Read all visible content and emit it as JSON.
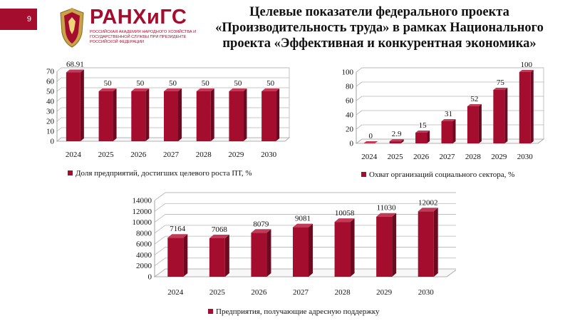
{
  "slide": {
    "page_number": "9",
    "logo_text": "РАНХиГС",
    "logo_subtitle": "Российская академия народного хозяйства и государственной службы при Президенте Российской Федерации",
    "title": "Целевые показатели  федерального проекта «Производительность труда» в рамках Национального проекта «Эффективная и конкурентная экономика»",
    "bar_color": "#a50d2f"
  },
  "chart_data": [
    {
      "type": "bar",
      "categories": [
        "2024",
        "2025",
        "2026",
        "2027",
        "2028",
        "2029",
        "2030"
      ],
      "series": [
        {
          "name": "Доля предприятий, достигших целевого роста ПТ, %",
          "values": [
            68.91,
            50,
            50,
            50,
            50,
            50,
            50
          ]
        }
      ],
      "value_labels": [
        "68.91",
        "50",
        "50",
        "50",
        "50",
        "50",
        "50"
      ],
      "ylim": [
        0,
        70
      ],
      "yticks": [
        "0",
        "10",
        "20",
        "30",
        "40",
        "50",
        "60",
        "70"
      ],
      "grid": true,
      "legend": "bottom"
    },
    {
      "type": "bar",
      "categories": [
        "2024",
        "2025",
        "2026",
        "2027",
        "2028",
        "2029",
        "2030"
      ],
      "series": [
        {
          "name": "Охват организаций социального сектора, %",
          "values": [
            0,
            2.9,
            15,
            31,
            52,
            75,
            100
          ]
        }
      ],
      "value_labels": [
        "0",
        "2.9",
        "15",
        "31",
        "52",
        "75",
        "100"
      ],
      "ylim": [
        0,
        100
      ],
      "yticks": [
        "0",
        "20",
        "40",
        "60",
        "80",
        "100"
      ],
      "grid": true,
      "legend": "bottom"
    },
    {
      "type": "bar",
      "categories": [
        "2024",
        "2025",
        "2026",
        "2027",
        "2028",
        "2029",
        "2030"
      ],
      "series": [
        {
          "name": "Предприятия, получающие адресную поддержку",
          "values": [
            7164,
            7068,
            8079,
            9081,
            10058,
            11030,
            12002
          ]
        }
      ],
      "value_labels": [
        "7164",
        "7068",
        "8079",
        "9081",
        "10058",
        "11030",
        "12002"
      ],
      "ylim": [
        0,
        14000
      ],
      "yticks": [
        "0",
        "2000",
        "4000",
        "6000",
        "8000",
        "10000",
        "12000",
        "14000"
      ],
      "grid": true,
      "legend": "bottom"
    }
  ]
}
